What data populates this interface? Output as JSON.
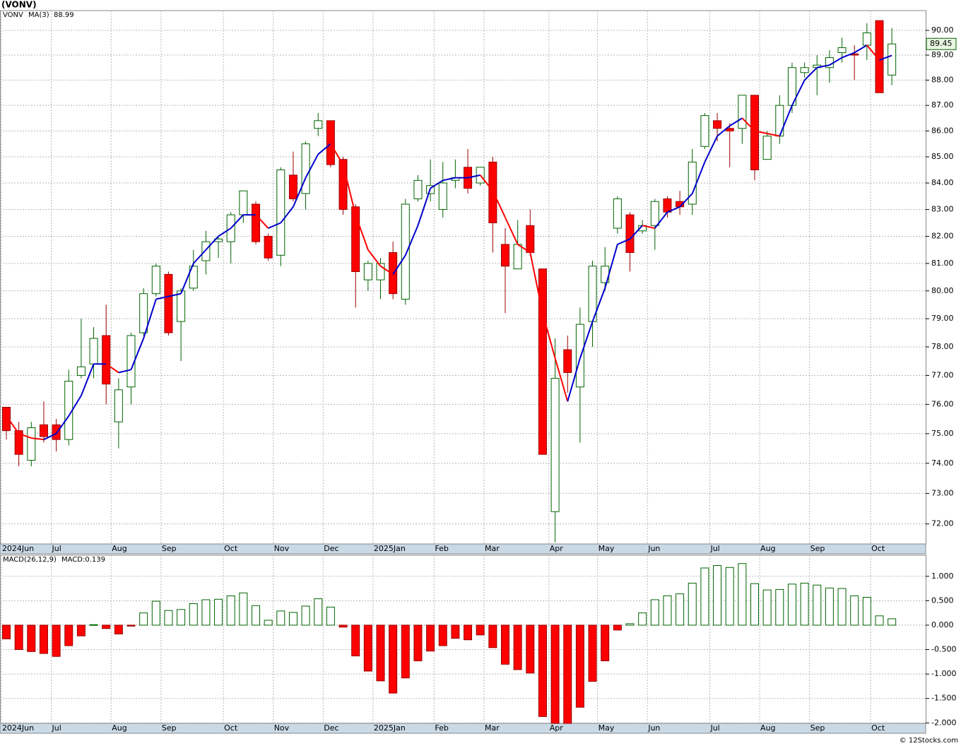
{
  "title": "(VONV)",
  "watermark": "© 12Stocks.com",
  "chart_data": [
    {
      "type": "candlestick",
      "symbol": "VONV",
      "symbol_color": "#006400",
      "log_scale": true,
      "grid": true,
      "up_color": "#ffffff",
      "up_edge": "#006400",
      "down_color": "#ff0000",
      "down_edge": "#990000",
      "open": [
        75.9,
        75.1,
        74.1,
        75.3,
        75.3,
        74.8,
        77.0,
        77.4,
        78.4,
        75.4,
        76.6,
        78.5,
        79.9,
        80.6,
        78.9,
        80.1,
        81.1,
        81.8,
        81.8,
        82.8,
        83.2,
        82.0,
        81.3,
        84.3,
        83.6,
        86.1,
        86.4,
        84.9,
        83.1,
        80.4,
        80.4,
        81.4,
        79.7,
        83.4,
        83.6,
        83.0,
        84.1,
        84.6,
        84.0,
        84.8,
        81.7,
        80.8,
        82.4,
        80.8,
        72.4,
        77.9,
        76.6,
        78.9,
        80.3,
        82.3,
        82.8,
        82.2,
        82.4,
        83.4,
        83.3,
        83.2,
        85.4,
        86.4,
        86.1,
        86.1,
        87.4,
        84.9,
        85.8,
        87.0,
        88.3,
        88.5,
        88.5,
        89.1,
        89.05,
        89.4,
        90.4,
        88.2
      ],
      "high": [
        75.9,
        75.4,
        75.4,
        76.1,
        75.5,
        77.2,
        79.0,
        78.7,
        79.5,
        76.9,
        78.5,
        80.1,
        81.0,
        80.7,
        80.1,
        81.5,
        82.2,
        82.0,
        82.9,
        83.7,
        83.3,
        82.1,
        84.6,
        85.2,
        85.6,
        86.7,
        86.4,
        85.0,
        83.2,
        81.1,
        81.2,
        81.8,
        83.4,
        84.3,
        84.9,
        84.8,
        84.9,
        85.3,
        84.6,
        85.0,
        82.3,
        82.6,
        83.0,
        80.8,
        78.3,
        78.4,
        79.4,
        81.1,
        81.6,
        83.5,
        82.9,
        82.6,
        83.4,
        83.5,
        83.7,
        85.3,
        86.7,
        86.7,
        86.3,
        87.4,
        87.4,
        86.0,
        87.4,
        88.7,
        88.7,
        89.0,
        89.2,
        89.7,
        89.4,
        90.3,
        90.4,
        90.1
      ],
      "low": [
        74.8,
        73.9,
        73.9,
        74.7,
        74.4,
        74.6,
        76.9,
        76.9,
        76.0,
        74.5,
        76.0,
        78.4,
        79.8,
        78.4,
        77.5,
        80.0,
        80.6,
        81.2,
        81.0,
        82.5,
        81.7,
        81.1,
        80.9,
        83.3,
        83.0,
        85.8,
        84.6,
        82.8,
        79.4,
        80.0,
        79.7,
        79.7,
        79.5,
        83.3,
        83.3,
        82.7,
        83.8,
        83.6,
        83.9,
        81.4,
        79.2,
        80.8,
        81.3,
        74.3,
        71.4,
        76.4,
        74.7,
        78.0,
        80.0,
        82.1,
        80.7,
        82.1,
        81.5,
        82.7,
        82.8,
        82.8,
        85.3,
        85.6,
        84.6,
        85.5,
        84.1,
        84.9,
        85.5,
        86.7,
        88.1,
        87.4,
        87.9,
        88.7,
        88.0,
        88.8,
        87.5,
        87.8
      ],
      "close": [
        75.1,
        74.3,
        75.2,
        74.9,
        74.8,
        76.8,
        77.3,
        78.3,
        76.7,
        76.5,
        78.4,
        79.9,
        80.9,
        78.5,
        80.0,
        80.9,
        81.8,
        81.9,
        82.8,
        83.7,
        81.8,
        81.2,
        84.5,
        83.4,
        85.5,
        86.4,
        84.7,
        83.0,
        80.7,
        81.0,
        81.0,
        79.9,
        83.2,
        84.1,
        83.9,
        84.0,
        84.2,
        83.8,
        84.6,
        82.5,
        80.9,
        81.7,
        81.4,
        74.3,
        76.9,
        77.1,
        78.8,
        80.9,
        80.9,
        83.4,
        81.4,
        82.4,
        83.3,
        82.9,
        83.1,
        84.8,
        86.6,
        86.1,
        86.0,
        87.4,
        84.5,
        85.8,
        87.0,
        88.5,
        88.5,
        88.6,
        88.9,
        89.3,
        89.0,
        89.9,
        87.5,
        89.45
      ],
      "ma": {
        "name": "MA(3)",
        "rise_color": "#0000cc",
        "fall_color": "#ff0000",
        "values": [
          75.6,
          75.0,
          74.85,
          74.8,
          75.0,
          75.6,
          76.3,
          77.4,
          77.4,
          77.1,
          77.2,
          78.3,
          79.7,
          79.8,
          79.9,
          81.0,
          81.5,
          82.0,
          82.3,
          82.8,
          82.8,
          82.3,
          82.5,
          83.1,
          84.2,
          85.1,
          85.5,
          84.7,
          82.8,
          81.5,
          80.9,
          80.6,
          81.3,
          82.4,
          83.8,
          84.1,
          84.2,
          84.2,
          84.3,
          83.7,
          82.7,
          81.7,
          81.4,
          79.2,
          77.6,
          76.1,
          77.6,
          78.9,
          80.1,
          81.7,
          81.9,
          82.4,
          82.3,
          82.9,
          83.1,
          83.6,
          84.8,
          85.8,
          86.2,
          86.5,
          86.0,
          85.9,
          85.8,
          87.0,
          88.0,
          88.5,
          88.6,
          88.9,
          89.1,
          89.4,
          88.8,
          88.99
        ]
      },
      "ylim": [
        71.35,
        90.81
      ],
      "yticks": [
        {
          "value": 72,
          "label": "72.00"
        },
        {
          "value": 73,
          "label": "73.00"
        },
        {
          "value": 74,
          "label": "74.00"
        },
        {
          "value": 75,
          "label": "75.00"
        },
        {
          "value": 76,
          "label": "76.00"
        },
        {
          "value": 77,
          "label": "77.00"
        },
        {
          "value": 78,
          "label": "78.00"
        },
        {
          "value": 79,
          "label": "79.00"
        },
        {
          "value": 80,
          "label": "80.00"
        },
        {
          "value": 81,
          "label": "81.00"
        },
        {
          "value": 82,
          "label": "82.00"
        },
        {
          "value": 83,
          "label": "83.00"
        },
        {
          "value": 84,
          "label": "84.00"
        },
        {
          "value": 85,
          "label": "85.00"
        },
        {
          "value": 86,
          "label": "86.00"
        },
        {
          "value": 87,
          "label": "87.00"
        },
        {
          "value": 88,
          "label": "88.00"
        },
        {
          "value": 89,
          "label": "89.00"
        },
        {
          "value": 90,
          "label": "90.00"
        }
      ],
      "xticks": [
        {
          "value": -0.4,
          "label": "2024Jun"
        },
        {
          "value": 3.6,
          "label": "Jul"
        },
        {
          "value": 8.4,
          "label": "Aug"
        },
        {
          "value": 12.4,
          "label": "Sep"
        },
        {
          "value": 17.4,
          "label": "Oct"
        },
        {
          "value": 21.4,
          "label": "Nov"
        },
        {
          "value": 25.4,
          "label": "Dec"
        },
        {
          "value": 29.4,
          "label": "2025Jan"
        },
        {
          "value": 34.3,
          "label": "Feb"
        },
        {
          "value": 38.3,
          "label": "Mar"
        },
        {
          "value": 43.5,
          "label": "Apr"
        },
        {
          "value": 47.4,
          "label": "May"
        },
        {
          "value": 51.4,
          "label": "Jun"
        },
        {
          "value": 56.4,
          "label": "Jul"
        },
        {
          "value": 60.4,
          "label": "Aug"
        },
        {
          "value": 64.4,
          "label": "Sep"
        },
        {
          "value": 69.3,
          "label": "Oct"
        }
      ]
    },
    {
      "type": "macd",
      "name": "MACD(26,12,9)",
      "value_label": "MACD:0.139",
      "grid": true,
      "positive_color": "#ffffff",
      "positive_edge": "#006400",
      "negative_color": "#ff0000",
      "negative_edge": "#990000",
      "values": [
        -0.28,
        -0.5,
        -0.54,
        -0.58,
        -0.64,
        -0.42,
        -0.22,
        0.01,
        -0.07,
        -0.18,
        -0.02,
        0.25,
        0.49,
        0.3,
        0.32,
        0.44,
        0.52,
        0.53,
        0.6,
        0.66,
        0.4,
        0.1,
        0.29,
        0.26,
        0.39,
        0.54,
        0.37,
        -0.04,
        -0.63,
        -0.94,
        -1.14,
        -1.39,
        -1.08,
        -0.73,
        -0.53,
        -0.42,
        -0.27,
        -0.3,
        -0.2,
        -0.46,
        -0.8,
        -0.91,
        -0.98,
        -1.87,
        -2.01,
        -2.01,
        -1.68,
        -1.15,
        -0.73,
        -0.1,
        0.03,
        0.25,
        0.52,
        0.6,
        0.64,
        0.86,
        1.17,
        1.22,
        1.18,
        1.26,
        0.85,
        0.72,
        0.73,
        0.84,
        0.86,
        0.82,
        0.76,
        0.75,
        0.6,
        0.57,
        0.19,
        0.13
      ],
      "ylim": [
        -2.01,
        1.43
      ],
      "yticks": [
        {
          "value": 1,
          "label": "1.000"
        },
        {
          "value": 0.5,
          "label": "0.500"
        },
        {
          "value": 0,
          "label": "0.000"
        },
        {
          "value": -0.5,
          "label": "-0.500"
        },
        {
          "value": -1,
          "label": "-1.000"
        },
        {
          "value": -1.5,
          "label": "-1.500"
        },
        {
          "value": -2,
          "label": "-2.000"
        }
      ],
      "xticks": [
        {
          "value": -0.4,
          "label": "2024Jun"
        },
        {
          "value": 3.6,
          "label": "Jul"
        },
        {
          "value": 8.4,
          "label": "Aug"
        },
        {
          "value": 12.4,
          "label": "Sep"
        },
        {
          "value": 17.4,
          "label": "Oct"
        },
        {
          "value": 21.4,
          "label": "Nov"
        },
        {
          "value": 25.4,
          "label": "Dec"
        },
        {
          "value": 29.4,
          "label": "2025Jan"
        },
        {
          "value": 34.3,
          "label": "Feb"
        },
        {
          "value": 38.3,
          "label": "Mar"
        },
        {
          "value": 43.5,
          "label": "Apr"
        },
        {
          "value": 47.4,
          "label": "May"
        },
        {
          "value": 51.4,
          "label": "Jun"
        },
        {
          "value": 56.4,
          "label": "Jul"
        },
        {
          "value": 60.4,
          "label": "Aug"
        },
        {
          "value": 64.4,
          "label": "Sep"
        },
        {
          "value": 69.3,
          "label": "Oct"
        }
      ]
    }
  ]
}
